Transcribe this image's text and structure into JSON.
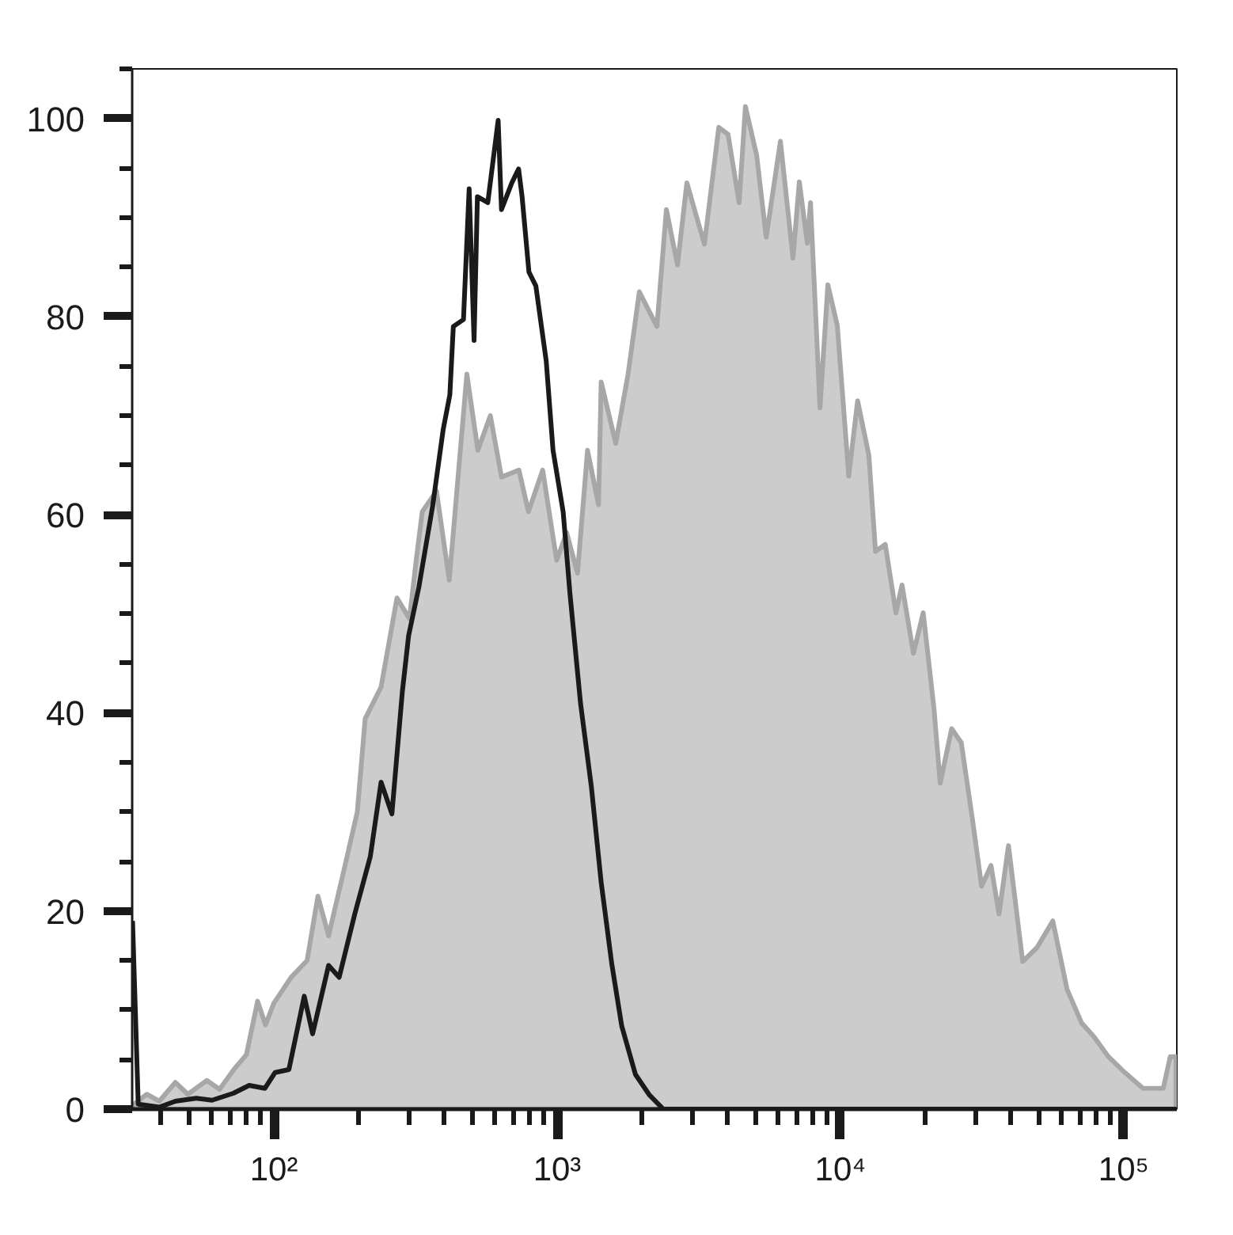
{
  "chart_data": {
    "type": "area",
    "log": "x",
    "xlim": [
      31.6,
      154000
    ],
    "xticks": [
      {
        "value": 100,
        "label": "10²"
      },
      {
        "value": 1000,
        "label": "10³"
      },
      {
        "value": 10000,
        "label": "10⁴"
      },
      {
        "value": 100000,
        "label": "10⁵"
      }
    ],
    "ylim": [
      0,
      105
    ],
    "yticks": [
      0,
      20,
      40,
      60,
      80,
      100
    ],
    "series": [
      {
        "color": "#cccccc",
        "x": [
          32.1,
          35.6,
          39.4,
          44.9,
          49.7,
          58.0,
          64.3,
          72.2,
          80.0,
          87.6,
          93.4,
          100,
          115,
          131,
          143,
          156,
          178,
          197,
          210,
          239,
          272,
          301,
          318,
          334,
          375,
          416,
          480,
          525,
          581,
          636,
          733,
          792,
          889,
          996,
          1080,
          1180,
          1280,
          1400,
          1430,
          1610,
          1780,
          1950,
          2250,
          2430,
          2660,
          2870,
          3310,
          3720,
          4010,
          4390,
          4620,
          5060,
          5470,
          6140,
          6800,
          7160,
          7640,
          7840,
          8470,
          9030,
          9750,
          10700,
          11500,
          12600,
          13300,
          14400,
          15700,
          16500,
          18100,
          19600,
          21400,
          22500,
          24700,
          26700,
          29200,
          31500,
          34000,
          36300,
          39200,
          44000,
          49400,
          56200,
          63100,
          71000,
          78600,
          88300,
          99100,
          117000,
          138000,
          146000,
          153000
        ],
        "values": [
          0.5,
          1.5,
          0.8,
          2.7,
          1.5,
          2.9,
          2.0,
          4.0,
          5.5,
          10.9,
          8.5,
          10.7,
          13.3,
          15,
          21.5,
          17.5,
          24.5,
          30,
          39.4,
          42.6,
          51.6,
          49.5,
          55.4,
          60.3,
          62.4,
          53.4,
          74.2,
          66.5,
          70.0,
          63.8,
          64.5,
          60.3,
          64.5,
          55.4,
          58.2,
          54.1,
          66.5,
          61.0,
          73.4,
          67.2,
          74.2,
          82.5,
          79.0,
          90.8,
          85.2,
          93.5,
          87.3,
          99.1,
          98.4,
          91.5,
          101.2,
          96.3,
          88.0,
          97.7,
          85.9,
          93.6,
          87.4,
          91.5,
          70.8,
          83.2,
          79.1,
          63.9,
          71.5,
          66.0,
          56.3,
          57.0,
          50.1,
          52.9,
          46.0,
          50.1,
          40.4,
          32.9,
          38.4,
          37.0,
          29.4,
          22.5,
          24.6,
          19.7,
          26.6,
          14.9,
          16.3,
          19.0,
          12.1,
          8.7,
          7.3,
          5.3,
          3.9,
          2.1,
          2.1,
          5.3,
          5.3
        ]
      },
      {
        "type": "line",
        "color": "#1a1a1a",
        "x": [
          31.7,
          33.2,
          39.4,
          44.9,
          53.2,
          60.5,
          71.9,
          81.8,
          93.0,
          101,
          113,
          128,
          137,
          156,
          170,
          193,
          219,
          239,
          261,
          284,
          299,
          325,
          364,
          396,
          418,
          430,
          467,
          489,
          509,
          523,
          569,
          619,
          636,
          692,
          731,
          752,
          795,
          841,
          915,
          967,
          1050,
          1110,
          1210,
          1320,
          1430,
          1560,
          1690,
          1890,
          2120,
          2370,
          153000
        ],
        "values": [
          19,
          0.5,
          0.2,
          0.8,
          1.1,
          0.9,
          1.6,
          2.4,
          2.1,
          3.7,
          4.0,
          11.4,
          7.6,
          14.5,
          13.3,
          19.7,
          25.5,
          33.0,
          29.8,
          42.1,
          47.8,
          52.7,
          61.0,
          68.6,
          72.1,
          79.0,
          79.7,
          92.9,
          77.6,
          92.1,
          91.5,
          99.8,
          90.8,
          93.5,
          94.9,
          92.1,
          84.5,
          83.1,
          75.5,
          66.5,
          60.3,
          52.0,
          40.9,
          32.6,
          22.9,
          14.6,
          8.4,
          3.5,
          1.4,
          0,
          0
        ]
      }
    ]
  }
}
